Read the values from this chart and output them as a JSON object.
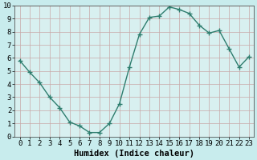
{
  "x": [
    0,
    1,
    2,
    3,
    4,
    5,
    6,
    7,
    8,
    9,
    10,
    11,
    12,
    13,
    14,
    15,
    16,
    17,
    18,
    19,
    20,
    21,
    22,
    23
  ],
  "y": [
    5.8,
    4.9,
    4.1,
    3.0,
    2.2,
    1.1,
    0.8,
    0.3,
    0.3,
    1.0,
    2.5,
    5.3,
    7.8,
    9.1,
    9.2,
    9.9,
    9.7,
    9.4,
    8.5,
    7.9,
    8.1,
    6.7,
    5.3,
    6.1
  ],
  "xlabel": "Humidex (Indice chaleur)",
  "xlim": [
    -0.5,
    23.5
  ],
  "ylim": [
    0,
    10
  ],
  "xticks": [
    0,
    1,
    2,
    3,
    4,
    5,
    6,
    7,
    8,
    9,
    10,
    11,
    12,
    13,
    14,
    15,
    16,
    17,
    18,
    19,
    20,
    21,
    22,
    23
  ],
  "yticks": [
    0,
    1,
    2,
    3,
    4,
    5,
    6,
    7,
    8,
    9,
    10
  ],
  "line_color": "#2e7d6e",
  "marker_color": "#2e7d6e",
  "bg_color": "#c8eced",
  "plot_bg_color": "#d8f0f0",
  "grid_color": "#c8a8a8",
  "xlabel_fontsize": 7.5,
  "tick_fontsize": 6.5,
  "line_width": 1.0,
  "marker_size": 2.5
}
